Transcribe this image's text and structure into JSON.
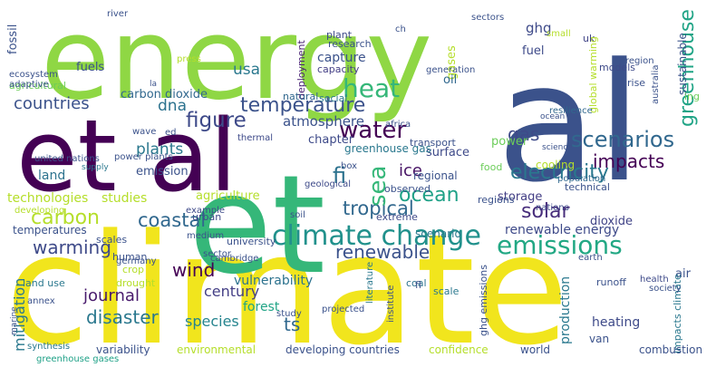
{
  "words": [
    {
      "text": "climate",
      "color": "#f1e51d"
    },
    {
      "text": "et al",
      "color": "#440154"
    },
    {
      "text": "energy",
      "color": "#8fd744"
    },
    {
      "text": "al",
      "color": "#3b528b"
    },
    {
      "text": "et",
      "color": "#35b779"
    },
    {
      "text": "climate change",
      "color": "#21918c"
    },
    {
      "text": "emissions",
      "color": "#22a884"
    },
    {
      "text": "heat",
      "color": "#35b779"
    },
    {
      "text": "scenarios",
      "color": "#31688e"
    },
    {
      "text": "figure",
      "color": "#3e4a89"
    },
    {
      "text": "water",
      "color": "#440154"
    },
    {
      "text": "temperature",
      "color": "#3b528b"
    },
    {
      "text": "electricity",
      "color": "#2a788e"
    },
    {
      "text": "impacts",
      "color": "#440154"
    },
    {
      "text": "ocean",
      "color": "#1fa187"
    },
    {
      "text": "greenhouse",
      "color": "#20a486"
    },
    {
      "text": "warming",
      "color": "#3e4a89"
    },
    {
      "text": "renewable",
      "color": "#3b528b"
    },
    {
      "text": "coastal",
      "color": "#31688e"
    },
    {
      "text": "tropical",
      "color": "#31688e"
    },
    {
      "text": "carbon",
      "color": "#b5de2b"
    },
    {
      "text": "solar",
      "color": "#472d7b"
    },
    {
      "text": "wind",
      "color": "#440154"
    },
    {
      "text": "journal",
      "color": "#481a6c"
    },
    {
      "text": "disaster",
      "color": "#2a788e"
    },
    {
      "text": "sea",
      "color": "#35b779"
    },
    {
      "text": "gas",
      "color": "#3e4a89"
    },
    {
      "text": "countries",
      "color": "#3b528b"
    },
    {
      "text": "dna",
      "color": "#2c728e"
    },
    {
      "text": "usa",
      "color": "#2a788e"
    },
    {
      "text": "ice",
      "color": "#471365"
    },
    {
      "text": "fi",
      "color": "#2c728e"
    },
    {
      "text": "ts",
      "color": "#31688e"
    },
    {
      "text": "ghg",
      "color": "#3e4a89"
    },
    {
      "text": "plants",
      "color": "#2a788e"
    },
    {
      "text": "century",
      "color": "#433e85"
    },
    {
      "text": "species",
      "color": "#25848e"
    },
    {
      "text": "mitigation",
      "color": "#2a788e"
    },
    {
      "text": "atmosphere",
      "color": "#3b528b"
    },
    {
      "text": "vulnerability",
      "color": "#2c728e"
    },
    {
      "text": "capture",
      "color": "#3b528b"
    },
    {
      "text": "carbon dioxide",
      "color": "#31688e"
    },
    {
      "text": "renewable energy",
      "color": "#3e4a89"
    },
    {
      "text": "agriculture",
      "color": "#b5de2b"
    },
    {
      "text": "storage",
      "color": "#433e85"
    },
    {
      "text": "chapter",
      "color": "#3e4a89"
    },
    {
      "text": "surface",
      "color": "#3e4a89"
    },
    {
      "text": "emission",
      "color": "#3b528b"
    },
    {
      "text": "power",
      "color": "#6ccd5a"
    },
    {
      "text": "dioxide",
      "color": "#414487"
    },
    {
      "text": "forest",
      "color": "#20a486"
    },
    {
      "text": "heating",
      "color": "#3e4a89"
    },
    {
      "text": "production",
      "color": "#2a788e"
    },
    {
      "text": "fuels",
      "color": "#3b528b"
    },
    {
      "text": "fossil",
      "color": "#3b528b"
    },
    {
      "text": "plant",
      "color": "#3e4a89"
    },
    {
      "text": "research",
      "color": "#3b528b"
    },
    {
      "text": "capacity",
      "color": "#433e85"
    },
    {
      "text": "deployment",
      "color": "#482173"
    },
    {
      "text": "university",
      "color": "#3b528b"
    },
    {
      "text": "natural",
      "color": "#31688e"
    },
    {
      "text": "social",
      "color": "#2a788e"
    },
    {
      "text": "gases",
      "color": "#b5de2b"
    },
    {
      "text": "oil",
      "color": "#31688e"
    },
    {
      "text": "fuel",
      "color": "#3e4a89"
    },
    {
      "text": "uk",
      "color": "#414487"
    },
    {
      "text": "models",
      "color": "#3e4a89"
    },
    {
      "text": "rise",
      "color": "#3b528b"
    },
    {
      "text": "sustainable",
      "color": "#3b528b"
    },
    {
      "text": "global warming",
      "color": "#b5de2b"
    },
    {
      "text": "region",
      "color": "#3b528b"
    },
    {
      "text": "australia",
      "color": "#3b528b"
    },
    {
      "text": "ing",
      "color": "#6ccd5a"
    },
    {
      "text": "resilience",
      "color": "#31688e"
    },
    {
      "text": "land",
      "color": "#2c728e"
    },
    {
      "text": "temperatures",
      "color": "#3b528b"
    },
    {
      "text": "technologies",
      "color": "#b5de2b"
    },
    {
      "text": "studies",
      "color": "#b5de2b"
    },
    {
      "text": "land use",
      "color": "#2a788e"
    },
    {
      "text": "scales",
      "color": "#3b528b"
    },
    {
      "text": "urban",
      "color": "#3e4a89"
    },
    {
      "text": "human",
      "color": "#3b528b"
    },
    {
      "text": "transport",
      "color": "#3b528b"
    },
    {
      "text": "greenhouse gas",
      "color": "#2a788e"
    },
    {
      "text": "box",
      "color": "#3b528b"
    },
    {
      "text": "regional",
      "color": "#3b528b"
    },
    {
      "text": "observed",
      "color": "#3b528b"
    },
    {
      "text": "geological",
      "color": "#3e4a89"
    },
    {
      "text": "regions",
      "color": "#3b528b"
    },
    {
      "text": "food",
      "color": "#6ccd5a"
    },
    {
      "text": "cooling",
      "color": "#b5de2b"
    },
    {
      "text": "population",
      "color": "#31688e"
    },
    {
      "text": "technical",
      "color": "#3b528b"
    },
    {
      "text": "nations",
      "color": "#3e4a89"
    },
    {
      "text": "extreme",
      "color": "#3e4a89"
    },
    {
      "text": "scenario",
      "color": "#2a788e"
    },
    {
      "text": "coal",
      "color": "#2c728e"
    },
    {
      "text": "scale",
      "color": "#2a788e"
    },
    {
      "text": "runoff",
      "color": "#3b528b"
    },
    {
      "text": "air",
      "color": "#3b528b"
    },
    {
      "text": "health",
      "color": "#3e4a89"
    },
    {
      "text": "ghg emissions",
      "color": "#3b528b"
    },
    {
      "text": "impacts climate",
      "color": "#2a788e"
    },
    {
      "text": "variability",
      "color": "#3b528b"
    },
    {
      "text": "environmental",
      "color": "#b5de2b"
    },
    {
      "text": "developing countries",
      "color": "#3b528b"
    },
    {
      "text": "confidence",
      "color": "#b5de2b"
    },
    {
      "text": "world",
      "color": "#3b528b"
    },
    {
      "text": "combustion",
      "color": "#3b528b"
    },
    {
      "text": "annex",
      "color": "#3b528b"
    },
    {
      "text": "synthesis",
      "color": "#2a788e"
    },
    {
      "text": "drought",
      "color": "#b5de2b"
    },
    {
      "text": "germany",
      "color": "#3b528b"
    },
    {
      "text": "crop",
      "color": "#b5de2b"
    },
    {
      "text": "marine",
      "color": "#3b528b"
    },
    {
      "text": "greenhouse gases",
      "color": "#1fa187"
    },
    {
      "text": "agricultural",
      "color": "#6ccd5a"
    },
    {
      "text": "adaptive",
      "color": "#3b528b"
    },
    {
      "text": "ecosystem",
      "color": "#3b528b"
    },
    {
      "text": "river",
      "color": "#3b528b"
    },
    {
      "text": "press",
      "color": "#b5de2b"
    },
    {
      "text": "sectors",
      "color": "#3b528b"
    },
    {
      "text": "small",
      "color": "#b5de2b"
    },
    {
      "text": "ch",
      "color": "#3b528b"
    },
    {
      "text": "generation",
      "color": "#3b528b"
    },
    {
      "text": "africa",
      "color": "#3b528b"
    },
    {
      "text": "thermal",
      "color": "#3e4a89"
    },
    {
      "text": "wave",
      "color": "#3b528b"
    },
    {
      "text": "ed",
      "color": "#3b528b"
    },
    {
      "text": "la",
      "color": "#3b528b"
    },
    {
      "text": "united nations",
      "color": "#3b528b"
    },
    {
      "text": "power plants",
      "color": "#3b528b"
    },
    {
      "text": "supply",
      "color": "#2a788e"
    },
    {
      "text": "example",
      "color": "#3e4a89"
    },
    {
      "text": "developing",
      "color": "#b5de2b"
    },
    {
      "text": "cambridge",
      "color": "#3b528b"
    },
    {
      "text": "soil",
      "color": "#3b528b"
    },
    {
      "text": "medium",
      "color": "#3b528b"
    },
    {
      "text": "sector",
      "color": "#3b528b"
    },
    {
      "text": "literature",
      "color": "#2a788e"
    },
    {
      "text": "institute",
      "color": "#3b528b"
    },
    {
      "text": "study",
      "color": "#3b528b"
    },
    {
      "text": "projected",
      "color": "#3b528b"
    },
    {
      "text": "society",
      "color": "#3b528b"
    },
    {
      "text": "van",
      "color": "#3b528b"
    },
    {
      "text": "fl",
      "color": "#3b528b"
    },
    {
      "text": "earth",
      "color": "#3b528b"
    },
    {
      "text": "science",
      "color": "#3b528b"
    },
    {
      "text": "ocean",
      "color": "#3b528b"
    }
  ]
}
